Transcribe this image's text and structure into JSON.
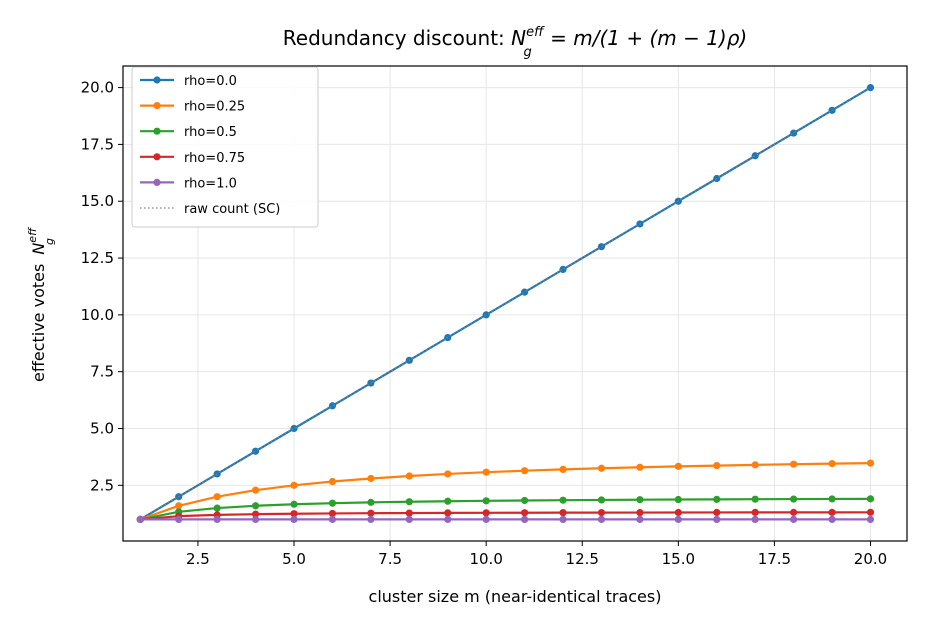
{
  "chart_data": {
    "type": "line",
    "title_prefix": "Redundancy discount: ",
    "title_rest": " = m/(1 + (m − 1)ρ)",
    "xlabel": "cluster size m (near-identical traces)",
    "ylabel_text": "effective votes",
    "math_symbol": "N",
    "math_sup": "eff",
    "math_sub": "g",
    "xlim": [
      0.55,
      20.95
    ],
    "ylim": [
      0.05,
      20.95
    ],
    "x_ticks": [
      2.5,
      5.0,
      7.5,
      10.0,
      12.5,
      15.0,
      17.5,
      20.0
    ],
    "y_ticks": [
      2.5,
      5.0,
      7.5,
      10.0,
      12.5,
      15.0,
      17.5,
      20.0
    ],
    "grid": true,
    "legend_position": "top-left",
    "x": [
      1,
      2,
      3,
      4,
      5,
      6,
      7,
      8,
      9,
      10,
      11,
      12,
      13,
      14,
      15,
      16,
      17,
      18,
      19,
      20
    ],
    "series": [
      {
        "name": "rho=0.0",
        "color": "#1f77b4",
        "values": [
          1,
          2,
          3,
          4,
          5,
          6,
          7,
          8,
          9,
          10,
          11,
          12,
          13,
          14,
          15,
          16,
          17,
          18,
          19,
          20
        ]
      },
      {
        "name": "rho=0.25",
        "color": "#ff7f0e",
        "values": [
          1,
          1.6,
          2.0,
          2.286,
          2.5,
          2.667,
          2.8,
          2.909,
          3.0,
          3.077,
          3.143,
          3.2,
          3.25,
          3.294,
          3.333,
          3.368,
          3.4,
          3.429,
          3.455,
          3.478
        ]
      },
      {
        "name": "rho=0.5",
        "color": "#2ca02c",
        "values": [
          1,
          1.333,
          1.5,
          1.6,
          1.667,
          1.714,
          1.75,
          1.778,
          1.8,
          1.818,
          1.833,
          1.846,
          1.857,
          1.867,
          1.875,
          1.882,
          1.889,
          1.895,
          1.9,
          1.905
        ]
      },
      {
        "name": "rho=0.75",
        "color": "#d62728",
        "values": [
          1,
          1.143,
          1.2,
          1.231,
          1.25,
          1.263,
          1.273,
          1.28,
          1.286,
          1.29,
          1.294,
          1.297,
          1.3,
          1.302,
          1.304,
          1.306,
          1.308,
          1.309,
          1.31,
          1.312
        ]
      },
      {
        "name": "rho=1.0",
        "color": "#9467bd",
        "values": [
          1,
          1,
          1,
          1,
          1,
          1,
          1,
          1,
          1,
          1,
          1,
          1,
          1,
          1,
          1,
          1,
          1,
          1,
          1,
          1
        ]
      }
    ],
    "reference_line": {
      "name": "raw count (SC)",
      "color": "#808080",
      "style": "dotted",
      "values": [
        1,
        2,
        3,
        4,
        5,
        6,
        7,
        8,
        9,
        10,
        11,
        12,
        13,
        14,
        15,
        16,
        17,
        18,
        19,
        20
      ]
    }
  }
}
